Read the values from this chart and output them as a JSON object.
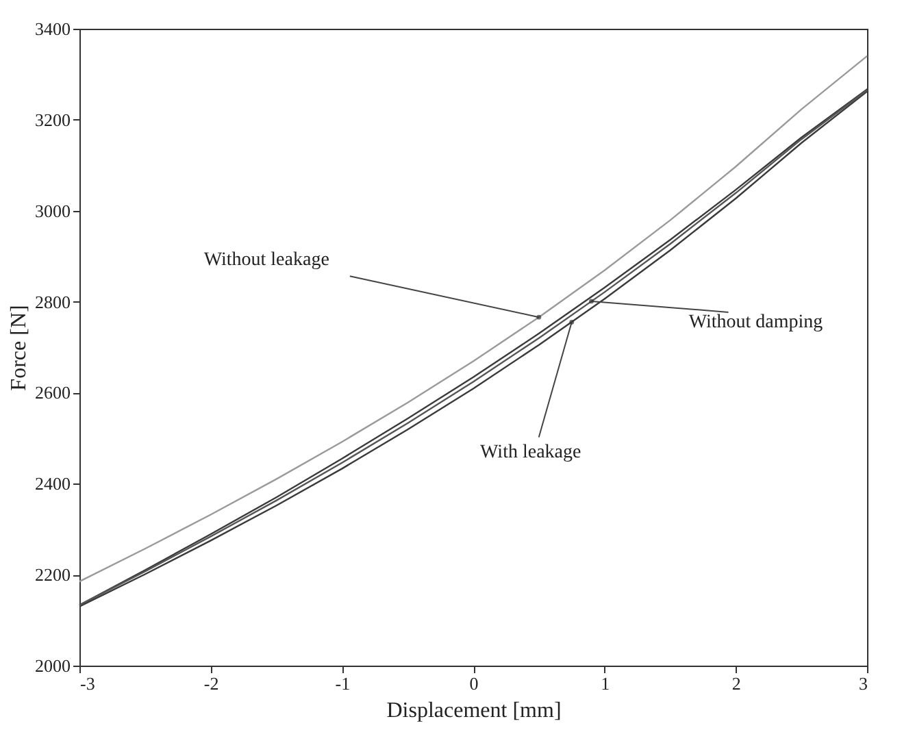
{
  "chart_data": {
    "type": "line",
    "xlabel": "Displacement [mm]",
    "ylabel": "Force [N]",
    "xlim": [
      -3,
      3
    ],
    "xticks": [
      -3,
      -2,
      -1,
      0,
      1,
      2,
      3
    ],
    "ylim": [
      2000,
      3400
    ],
    "yticks": [
      2000,
      2200,
      2400,
      2600,
      2800,
      3000,
      3200,
      3400
    ],
    "grid": false,
    "line_style": "solid",
    "marker": "none",
    "series": [
      {
        "color": "#9a9a9a",
        "x": [
          -3,
          -2.5,
          -2,
          -1.5,
          -1,
          -0.5,
          0,
          0.5,
          1,
          1.5,
          2,
          2.5,
          3
        ],
        "values": [
          2185,
          2257,
          2332,
          2410,
          2492,
          2578,
          2669,
          2766,
          2869,
          2979,
          3097,
          3223,
          3340
        ]
      },
      {
        "color": "#3a3a3a",
        "x": [
          -3,
          -2.5,
          -2,
          -1.5,
          -1,
          -0.5,
          0,
          0.5,
          1,
          1.5,
          2,
          2.5,
          3,
          3,
          2.5,
          2,
          1.5,
          1,
          0.5,
          0,
          -0.5,
          -1,
          -1.5,
          -2,
          -2.5,
          -3
        ],
        "values": [
          2133,
          2210,
          2289,
          2370,
          2455,
          2543,
          2634,
          2730,
          2831,
          2936,
          3046,
          3161,
          3267,
          3262,
          3149,
          3027,
          2913,
          2806,
          2705,
          2609,
          2519,
          2433,
          2352,
          2275,
          2201,
          2130
        ]
      },
      {
        "color": "#555555",
        "x": [
          -3,
          -2.5,
          -2,
          -1.5,
          -1,
          -0.5,
          0,
          0.5,
          1,
          1.5,
          2,
          2.5,
          3
        ],
        "values": [
          2133,
          2207,
          2284,
          2363,
          2446,
          2533,
          2624,
          2720,
          2821,
          2927,
          3039,
          3157,
          3265
        ]
      }
    ],
    "annotations": [
      {
        "text": "Without leakage",
        "x": 0.5,
        "y": 2766
      },
      {
        "text": "Without damping",
        "x": 0.9,
        "y": 2801
      },
      {
        "text": "With leakage",
        "x": 0.75,
        "y": 2755
      }
    ]
  }
}
